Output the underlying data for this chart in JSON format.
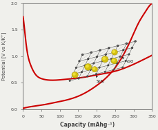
{
  "xlabel": "Capacity (mAhg⁻¹)",
  "ylabel": "Potential [V vs K/K⁺]",
  "xlim": [
    0,
    350
  ],
  "ylim": [
    0.0,
    2.0
  ],
  "xticks": [
    0,
    50,
    100,
    150,
    200,
    250,
    300,
    350
  ],
  "yticks": [
    0.0,
    0.5,
    1.0,
    1.5,
    2.0
  ],
  "line_color": "#cc0000",
  "line_width": 1.5,
  "background_color": "#f0f0ec",
  "axes_color": "#444444",
  "label_sns2": "SnS₂",
  "label_rgo": "rGO",
  "discharge_x": [
    0,
    2,
    5,
    10,
    20,
    35,
    50,
    80,
    120,
    160,
    200,
    250,
    300,
    350
  ],
  "discharge_y": [
    1.75,
    1.65,
    1.45,
    1.15,
    0.85,
    0.65,
    0.58,
    0.55,
    0.57,
    0.6,
    0.65,
    0.72,
    0.85,
    1.02
  ],
  "charge_x": [
    0,
    20,
    50,
    80,
    120,
    160,
    200,
    240,
    270,
    295,
    315,
    330,
    345,
    350
  ],
  "charge_y": [
    0.02,
    0.05,
    0.08,
    0.12,
    0.18,
    0.28,
    0.45,
    0.7,
    1.0,
    1.35,
    1.65,
    1.82,
    1.97,
    2.0
  ]
}
